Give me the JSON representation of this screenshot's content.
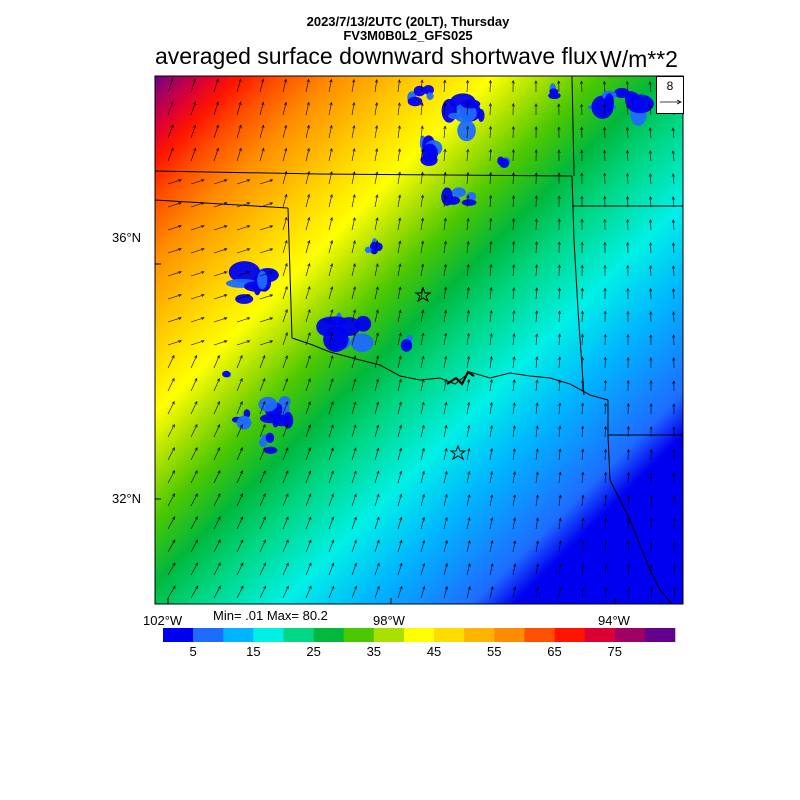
{
  "title": {
    "date_line": "2023/7/13/2UTC (20LT), Thursday",
    "model_line": "FV3M0B0L2_GFS025",
    "main": "averaged surface downward shortwave flux",
    "unit": "W/m**2"
  },
  "axes": {
    "lat_labels": [
      "36°N",
      "32°N"
    ],
    "lon_labels": [
      "102°W",
      "98°W",
      "94°W"
    ]
  },
  "stats": {
    "text": "Min= .01 Max= 80.2"
  },
  "vector_reference": {
    "value": "8"
  },
  "colorbar": {
    "labels": [
      "5",
      "15",
      "25",
      "35",
      "45",
      "55",
      "65",
      "75"
    ],
    "colors": [
      "#0000f0",
      "#1e6cff",
      "#00b4ff",
      "#00f0e6",
      "#00d886",
      "#00b83c",
      "#4cc800",
      "#a8e000",
      "#ffff00",
      "#ffdc00",
      "#ffb400",
      "#ff8c00",
      "#ff5000",
      "#ff1400",
      "#dc0032",
      "#a00064",
      "#64008c"
    ]
  },
  "colors": {
    "state_border": "#000000",
    "background": "#ffffff"
  }
}
